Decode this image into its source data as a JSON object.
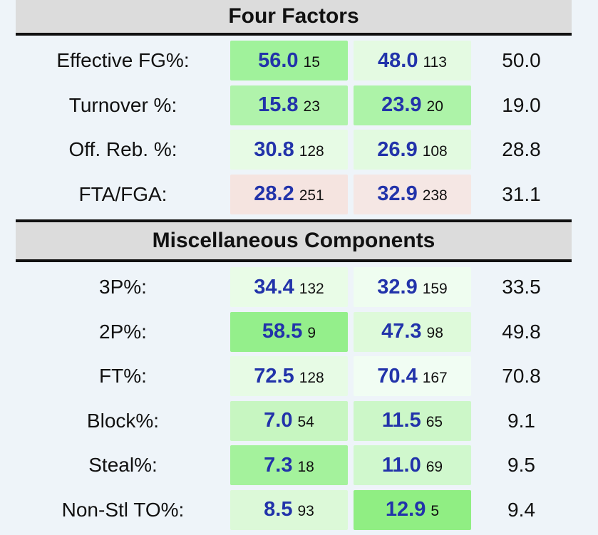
{
  "colors": {
    "page_background": "#eef4f9",
    "header_background": "#dcdcdc",
    "divider_line": "#111111",
    "value_blue": "#2233aa"
  },
  "sections": [
    {
      "title": "Four Factors",
      "rows": [
        {
          "label": "Effective FG%:",
          "cells": [
            {
              "value": "56.0",
              "rank": "15",
              "bg": "#a0f29b"
            },
            {
              "value": "48.0",
              "rank": "113",
              "bg": "#e4fae2"
            }
          ],
          "avg": "50.0"
        },
        {
          "label": "Turnover %:",
          "cells": [
            {
              "value": "15.8",
              "rank": "23",
              "bg": "#b0f3ab"
            },
            {
              "value": "23.9",
              "rank": "20",
              "bg": "#adf3a8"
            }
          ],
          "avg": "19.0"
        },
        {
          "label": "Off. Reb. %:",
          "cells": [
            {
              "value": "30.8",
              "rank": "128",
              "bg": "#e7fbe5"
            },
            {
              "value": "26.9",
              "rank": "108",
              "bg": "#e2fae0"
            }
          ],
          "avg": "28.8"
        },
        {
          "label": "FTA/FGA:",
          "cells": [
            {
              "value": "28.2",
              "rank": "251",
              "bg": "#f5e4e0"
            },
            {
              "value": "32.9",
              "rank": "238",
              "bg": "#f5e7e4"
            }
          ],
          "avg": "31.1"
        }
      ]
    },
    {
      "title": "Miscellaneous Components",
      "rows": [
        {
          "label": "3P%:",
          "cells": [
            {
              "value": "34.4",
              "rank": "132",
              "bg": "#e9fce7"
            },
            {
              "value": "32.9",
              "rank": "159",
              "bg": "#effdf0"
            }
          ],
          "avg": "33.5"
        },
        {
          "label": "2P%:",
          "cells": [
            {
              "value": "58.5",
              "rank": "9",
              "bg": "#94ef8b"
            },
            {
              "value": "47.3",
              "rank": "98",
              "bg": "#defada"
            }
          ],
          "avg": "49.8"
        },
        {
          "label": "FT%:",
          "cells": [
            {
              "value": "72.5",
              "rank": "128",
              "bg": "#e7fbe5"
            },
            {
              "value": "70.4",
              "rank": "167",
              "bg": "#f1fdf3"
            }
          ],
          "avg": "70.8"
        },
        {
          "label": "Block%:",
          "cells": [
            {
              "value": "7.0",
              "rank": "54",
              "bg": "#c7f6c1"
            },
            {
              "value": "11.5",
              "rank": "65",
              "bg": "#ccf7c8"
            }
          ],
          "avg": "9.1"
        },
        {
          "label": "Steal%:",
          "cells": [
            {
              "value": "7.3",
              "rank": "18",
              "bg": "#a4f29c"
            },
            {
              "value": "11.0",
              "rank": "69",
              "bg": "#d0f8cd"
            }
          ],
          "avg": "9.5"
        },
        {
          "label": "Non-Stl TO%:",
          "cells": [
            {
              "value": "8.5",
              "rank": "93",
              "bg": "#dcf9d8"
            },
            {
              "value": "12.9",
              "rank": "5",
              "bg": "#90ee83"
            }
          ],
          "avg": "9.4"
        }
      ]
    }
  ]
}
